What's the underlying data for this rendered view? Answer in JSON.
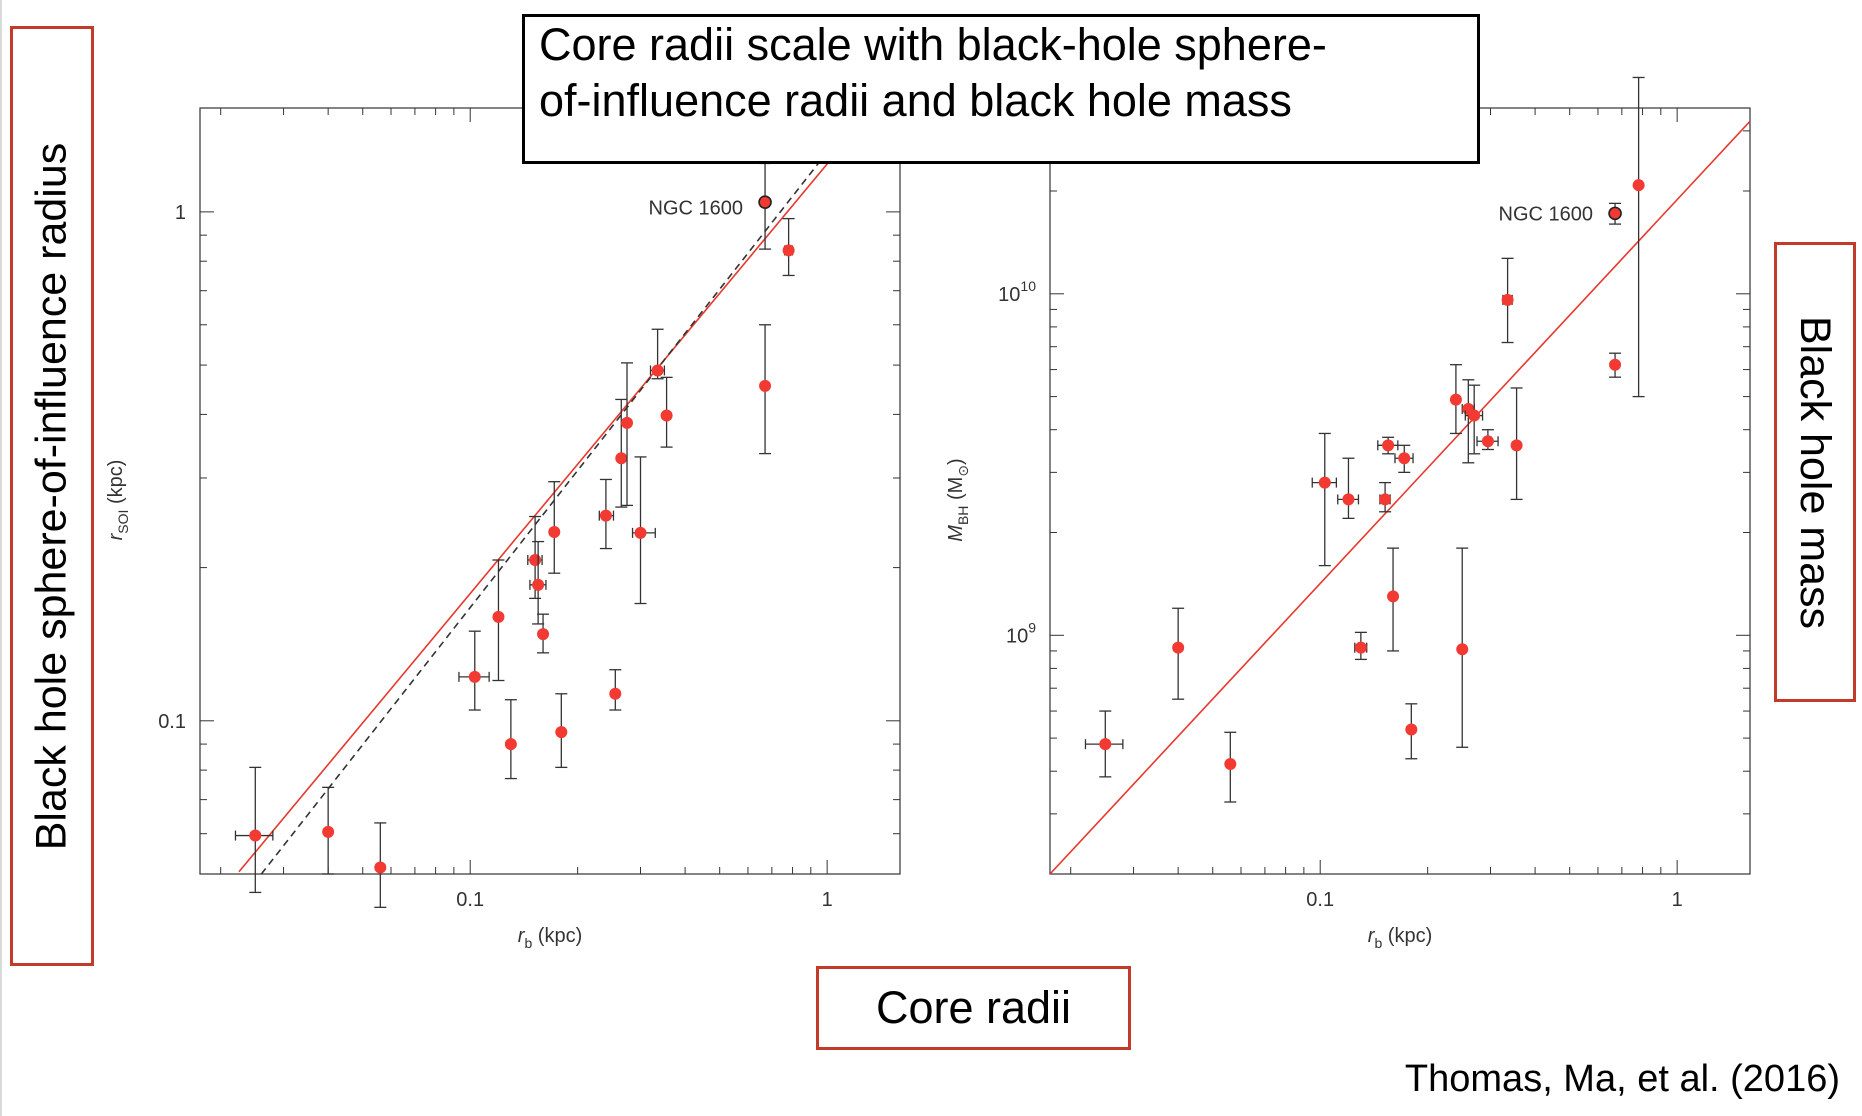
{
  "title": {
    "line1": "Core radii scale with black-hole sphere-",
    "line2": "of-influence radii and black hole mass"
  },
  "annotations": {
    "left": "Black hole sphere-of-influence radius",
    "right": "Black hole mass",
    "bottom": "Core radii",
    "citation": "Thomas, Ma, et al. (2016)"
  },
  "colors": {
    "points": "#f23a33",
    "fit_line": "#e8372c",
    "callout_border": "#c23b2a",
    "error_bars": "#333333"
  },
  "chart_data": [
    {
      "type": "scatter",
      "xlabel": {
        "main": "r",
        "sub": "b",
        "unit": " (kpc)"
      },
      "ylabel": {
        "main": "r",
        "sub": "SOI",
        "unit": " (kpc)"
      },
      "xscale": "log",
      "yscale": "log",
      "xlim": [
        0.0175,
        1.6
      ],
      "ylim": [
        0.05,
        1.6
      ],
      "xticks": [
        {
          "v": 0.1,
          "label": "0.1"
        },
        {
          "v": 1,
          "label": "1"
        }
      ],
      "yticks": [
        {
          "v": 0.1,
          "label": "0.1"
        },
        {
          "v": 1,
          "label": "1"
        }
      ],
      "annotation": {
        "text": "NGC 1600",
        "x": 0.67,
        "y": 1.02
      },
      "lines": [
        {
          "style": "solid",
          "color": "#e8372c",
          "points": [
            [
              0.0225,
              0.0505
            ],
            [
              1.35,
              1.6
            ]
          ]
        },
        {
          "style": "dashed",
          "color": "#333333",
          "points": [
            [
              0.026,
              0.05
            ],
            [
              1.25,
              1.6
            ]
          ]
        }
      ],
      "points": [
        {
          "x": 0.025,
          "xerr": [
            0.003,
            0.003
          ],
          "y": 0.0595,
          "yerr": [
            0.0135,
            0.0215
          ]
        },
        {
          "x": 0.04,
          "y": 0.0605,
          "yerr": [
            0.0105,
            0.0135
          ]
        },
        {
          "x": 0.056,
          "y": 0.0515,
          "yerr": [
            0.0085,
            0.0115
          ]
        },
        {
          "x": 0.103,
          "xerr": [
            0.01,
            0.01
          ],
          "y": 0.122,
          "yerr": [
            0.017,
            0.028
          ]
        },
        {
          "x": 0.12,
          "y": 0.16,
          "yerr": [
            0.04,
            0.047
          ]
        },
        {
          "x": 0.13,
          "y": 0.09,
          "yerr": [
            0.013,
            0.02
          ]
        },
        {
          "x": 0.152,
          "xerr": [
            0.007,
            0.007
          ],
          "y": 0.207,
          "yerr": [
            0.033,
            0.045
          ]
        },
        {
          "x": 0.155,
          "xerr": [
            0.008,
            0.008
          ],
          "y": 0.185,
          "yerr": [
            0.03,
            0.04
          ]
        },
        {
          "x": 0.16,
          "y": 0.148,
          "yerr": [
            0.012,
            0.014
          ]
        },
        {
          "x": 0.172,
          "y": 0.235,
          "yerr": [
            0.04,
            0.06
          ]
        },
        {
          "x": 0.18,
          "y": 0.095,
          "yerr": [
            0.014,
            0.018
          ]
        },
        {
          "x": 0.24,
          "xerr": [
            0.01,
            0.012
          ],
          "y": 0.253,
          "yerr": [
            0.035,
            0.045
          ]
        },
        {
          "x": 0.255,
          "y": 0.113,
          "yerr": [
            0.008,
            0.013
          ]
        },
        {
          "x": 0.265,
          "y": 0.328,
          "yerr": [
            0.065,
            0.1
          ]
        },
        {
          "x": 0.275,
          "y": 0.385,
          "yerr": [
            0.12,
            0.12
          ]
        },
        {
          "x": 0.3,
          "xerr": [
            0.015,
            0.03
          ],
          "y": 0.234,
          "yerr": [
            0.064,
            0.096
          ]
        },
        {
          "x": 0.335,
          "xerr": [
            0.015,
            0.015
          ],
          "y": 0.488,
          "yerr": [
            0.018,
            0.1
          ]
        },
        {
          "x": 0.355,
          "y": 0.398,
          "yerr": [
            0.053,
            0.075
          ]
        },
        {
          "x": 0.67,
          "y": 0.455,
          "yerr": [
            0.12,
            0.145
          ]
        },
        {
          "x": 0.78,
          "xerr": [
            0.02,
            0.02
          ],
          "y": 0.84,
          "yerr": [
            0.09,
            0.13
          ]
        },
        {
          "x": 0.67,
          "y": 1.045,
          "yerr": [
            0.2,
            0.2
          ],
          "highlight": true
        }
      ]
    },
    {
      "type": "scatter",
      "xlabel": {
        "main": "r",
        "sub": "b",
        "unit": " (kpc)"
      },
      "ylabel": {
        "main": "M",
        "sub": "BH",
        "unit": " (M",
        "sub2": "⊙",
        "close": ")"
      },
      "xscale": "log",
      "yscale": "log",
      "xlim": [
        0.0175,
        1.6
      ],
      "ylim": [
        200000000.0,
        35000000000.0
      ],
      "xticks": [
        {
          "v": 0.1,
          "label": "0.1"
        },
        {
          "v": 1,
          "label": "1"
        }
      ],
      "yticks": [
        {
          "v": 1000000000.0,
          "base": "10",
          "exp": "9"
        },
        {
          "v": 10000000000.0,
          "base": "10",
          "exp": "10"
        }
      ],
      "annotation": {
        "text": "NGC 1600",
        "x": 0.67,
        "y": 17200000000.0
      },
      "lines": [
        {
          "style": "solid",
          "color": "#e8372c",
          "points": [
            [
              0.0175,
              200000000.0
            ],
            [
              1.6,
              32000000000.0
            ]
          ]
        }
      ],
      "points": [
        {
          "x": 0.025,
          "xerr": [
            0.003,
            0.003
          ],
          "y": 480000000.0,
          "yerr": [
            95000000.0,
            120000000.0
          ]
        },
        {
          "x": 0.04,
          "y": 920000000.0,
          "yerr": [
            270000000.0,
            280000000.0
          ]
        },
        {
          "x": 0.056,
          "y": 420000000.0,
          "yerr": [
            95000000.0,
            100000000.0
          ]
        },
        {
          "x": 0.103,
          "xerr": [
            0.008,
            0.008
          ],
          "y": 2800000000.0,
          "yerr": [
            1200000000.0,
            1100000000.0
          ]
        },
        {
          "x": 0.12,
          "xerr": [
            0.008,
            0.008
          ],
          "y": 2500000000.0,
          "yerr": [
            300000000.0,
            800000000.0
          ]
        },
        {
          "x": 0.13,
          "xerr": [
            0.005,
            0.005
          ],
          "y": 920000000.0,
          "yerr": [
            70000000.0,
            100000000.0
          ]
        },
        {
          "x": 0.152,
          "xerr": [
            0.005,
            0.005
          ],
          "y": 2500000000.0,
          "yerr": [
            200000000.0,
            300000000.0
          ]
        },
        {
          "x": 0.155,
          "xerr": [
            0.01,
            0.01
          ],
          "y": 3600000000.0,
          "yerr": [
            200000000.0,
            200000000.0
          ]
        },
        {
          "x": 0.16,
          "y": 1300000000.0,
          "yerr": [
            400000000.0,
            500000000.0
          ]
        },
        {
          "x": 0.172,
          "xerr": [
            0.01,
            0.01
          ],
          "y": 3300000000.0,
          "yerr": [
            300000000.0,
            300000000.0
          ]
        },
        {
          "x": 0.18,
          "y": 530000000.0,
          "yerr": [
            95000000.0,
            100000000.0
          ]
        },
        {
          "x": 0.24,
          "y": 4900000000.0,
          "yerr": [
            1000000000.0,
            1300000000.0
          ]
        },
        {
          "x": 0.25,
          "y": 910000000.0,
          "yerr": [
            440000000.0,
            890000000.0
          ]
        },
        {
          "x": 0.26,
          "xerr": [
            0.01,
            0.01
          ],
          "y": 4600000000.0,
          "yerr": [
            1400000000.0,
            1000000000.0
          ]
        },
        {
          "x": 0.27,
          "xerr": [
            0.015,
            0.015
          ],
          "y": 4400000000.0,
          "yerr": [
            1000000000.0,
            1000000000.0
          ]
        },
        {
          "x": 0.295,
          "xerr": [
            0.02,
            0.02
          ],
          "y": 3700000000.0,
          "yerr": [
            200000000.0,
            300000000.0
          ]
        },
        {
          "x": 0.335,
          "xerr": [
            0.01,
            0.01
          ],
          "y": 9600000000.0,
          "yerr": [
            2400000000.0,
            3100000000.0
          ]
        },
        {
          "x": 0.355,
          "y": 3600000000.0,
          "yerr": [
            1100000000.0,
            1700000000.0
          ]
        },
        {
          "x": 0.67,
          "y": 6200000000.0,
          "yerr": [
            500000000.0,
            500000000.0
          ]
        },
        {
          "x": 0.78,
          "y": 20800000000.0,
          "yerr": [
            15800000000.0,
            22200000000.0
          ]
        },
        {
          "x": 0.67,
          "y": 17200000000.0,
          "yerr": [
            1200000000.0,
            1200000000.0
          ],
          "highlight": true
        }
      ]
    }
  ]
}
